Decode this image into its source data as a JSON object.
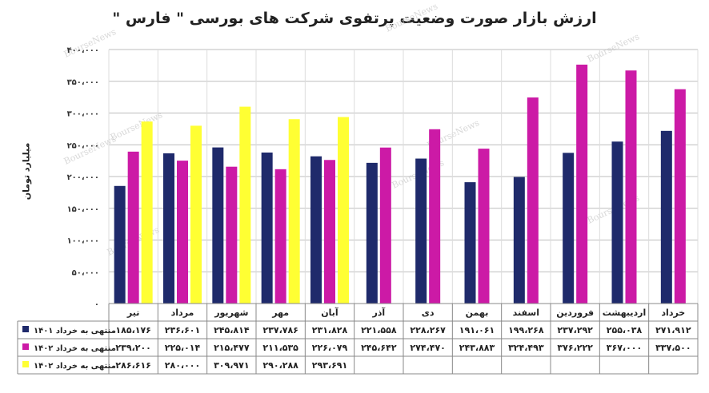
{
  "colors": {
    "s1401": "#1f2a6b",
    "s1402": "#cc1aa6",
    "s1402b": "#ffff33",
    "grid": "#bdbdbd"
  },
  "watermark": "BourseNews",
  "chart_data": {
    "type": "bar",
    "title": "ارزش بازار صورت وضعیت پرتفوی شرکت های بورسی \" فارس \"",
    "ylabel": "میلیارد تومان",
    "ylim": [
      0,
      400000
    ],
    "yticks": [
      0,
      50000,
      100000,
      150000,
      200000,
      250000,
      300000,
      350000,
      400000
    ],
    "ytick_labels": [
      "۰",
      "۵۰،۰۰۰",
      "۱۰۰،۰۰۰",
      "۱۵۰،۰۰۰",
      "۲۰۰،۰۰۰",
      "۲۵۰،۰۰۰",
      "۳۰۰،۰۰۰",
      "۳۵۰،۰۰۰",
      "۴۰۰،۰۰۰"
    ],
    "categories": [
      "تیر",
      "مرداد",
      "شهریور",
      "مهر",
      "آبان",
      "آذر",
      "دی",
      "بهمن",
      "اسفند",
      "فروردین",
      "اردیبهشت",
      "خرداد"
    ],
    "series": [
      {
        "name": "منتهی به خرداد ۱۴۰۱",
        "values": [
          185176,
          236601,
          245814,
          237786,
          231828,
          221558,
          228267,
          191061,
          199268,
          237292,
          255038,
          271912
        ],
        "labels": [
          "۱۸۵،۱۷۶",
          "۲۳۶،۶۰۱",
          "۲۴۵،۸۱۴",
          "۲۳۷،۷۸۶",
          "۲۳۱،۸۲۸",
          "۲۲۱،۵۵۸",
          "۲۲۸،۲۶۷",
          "۱۹۱،۰۶۱",
          "۱۹۹،۲۶۸",
          "۲۳۷،۲۹۲",
          "۲۵۵،۰۳۸",
          "۲۷۱،۹۱۲"
        ]
      },
      {
        "name": "منتهی به خرداد ۱۴۰۲",
        "values": [
          239200,
          225014,
          215477,
          211535,
          226079,
          245642,
          274470,
          243883,
          324493,
          376222,
          367000,
          337500
        ],
        "labels": [
          "۲۳۹،۲۰۰",
          "۲۲۵،۰۱۴",
          "۲۱۵،۴۷۷",
          "۲۱۱،۵۳۵",
          "۲۲۶،۰۷۹",
          "۲۴۵،۶۴۲",
          "۲۷۴،۴۷۰",
          "۲۴۳،۸۸۳",
          "۳۲۴،۴۹۳",
          "۳۷۶،۲۲۲",
          "۳۶۷،۰۰۰",
          "۳۳۷،۵۰۰"
        ]
      },
      {
        "name": "منتهی به خرداد ۱۴۰۲",
        "values": [
          286616,
          280000,
          309971,
          290288,
          293691,
          null,
          null,
          null,
          null,
          null,
          null,
          null
        ],
        "labels": [
          "۲۸۶،۶۱۶",
          "۲۸۰،۰۰۰",
          "۳۰۹،۹۷۱",
          "۲۹۰،۲۸۸",
          "۲۹۳،۶۹۱",
          "",
          "",
          "",
          "",
          "",
          "",
          ""
        ]
      }
    ],
    "grid": true,
    "legend": "table-below"
  }
}
